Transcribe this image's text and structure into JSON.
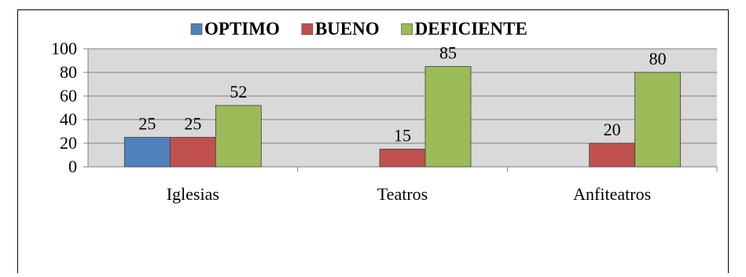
{
  "chart_data": {
    "type": "bar",
    "categories": [
      "Iglesias",
      "Teatros",
      "Anfiteatros"
    ],
    "series": [
      {
        "name": "OPTIMO",
        "color": "#4f81bd",
        "values": [
          25,
          null,
          null
        ]
      },
      {
        "name": "BUENO",
        "color": "#c0504d",
        "values": [
          25,
          15,
          20
        ]
      },
      {
        "name": "DEFICIENTE",
        "color": "#9bbb59",
        "values": [
          52,
          85,
          80
        ]
      }
    ],
    "ylim": [
      0,
      100
    ],
    "yticks": [
      0,
      20,
      40,
      60,
      80,
      100
    ],
    "grid": true,
    "legend_position": "top",
    "plot_background": "#d9d9d9"
  }
}
